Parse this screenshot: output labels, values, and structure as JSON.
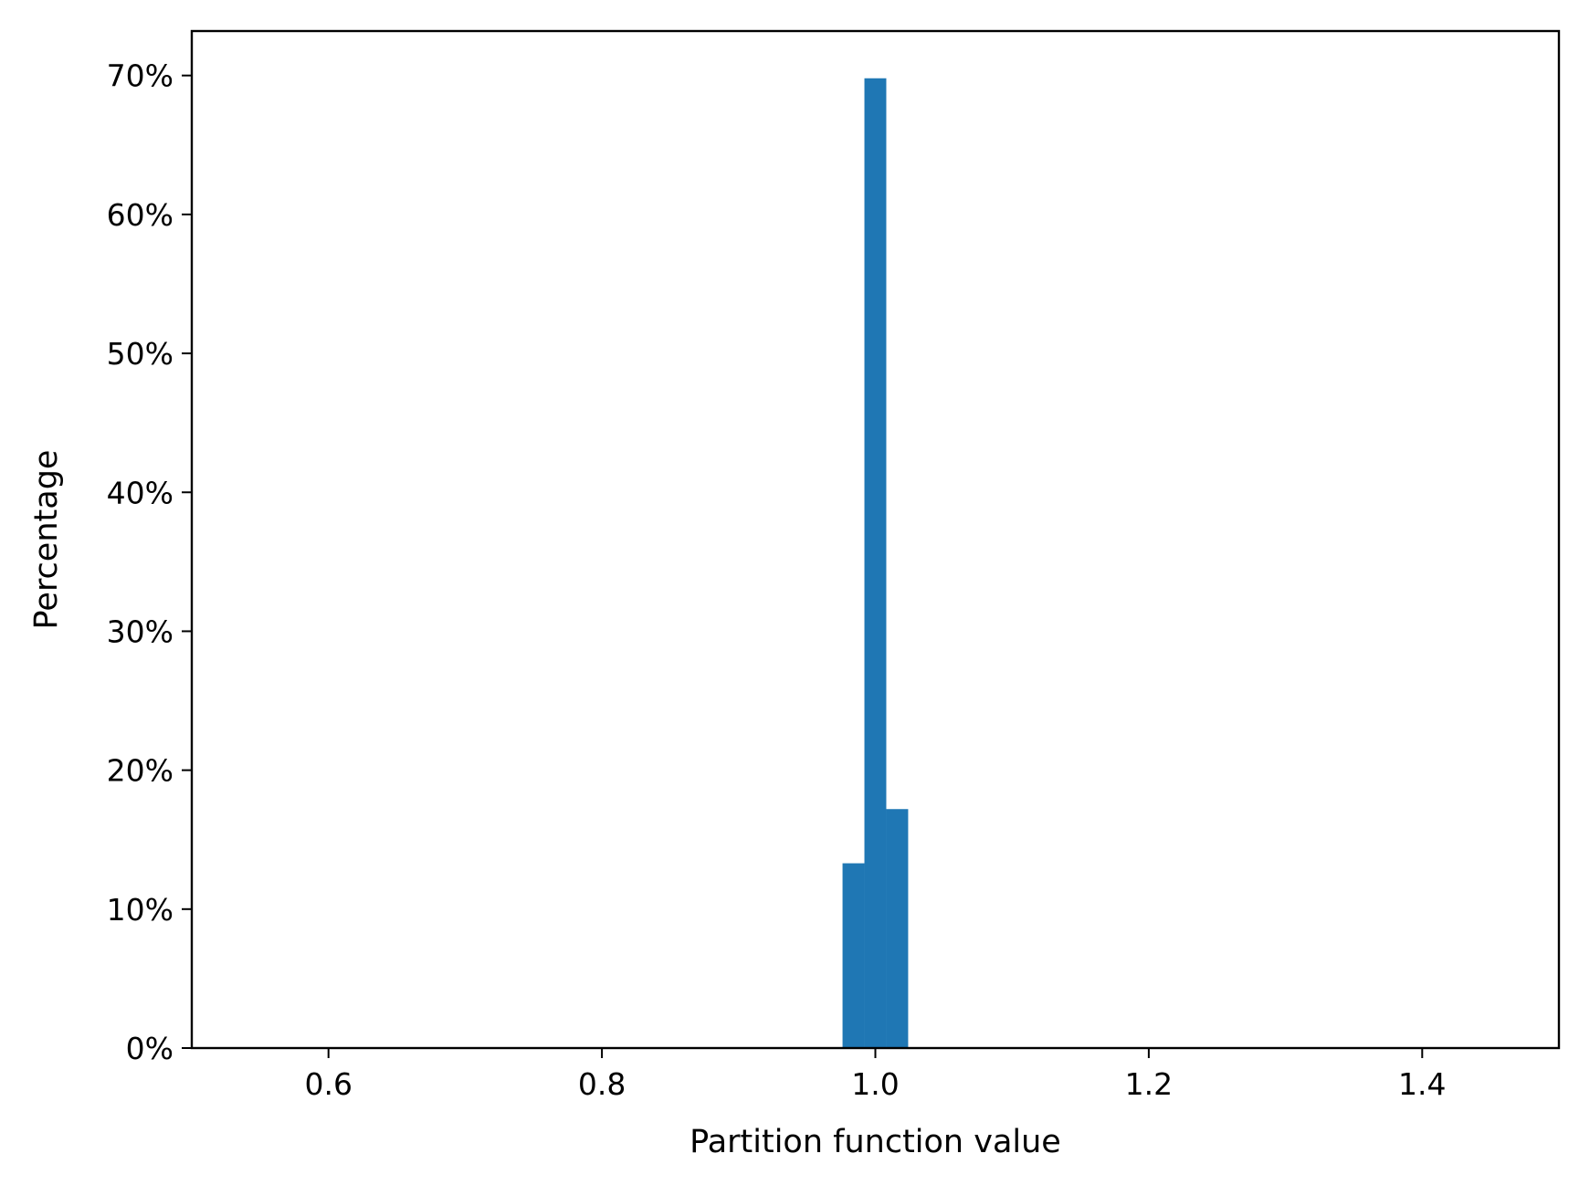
{
  "chart_data": {
    "type": "bar",
    "title": "",
    "xlabel": "Partition function value",
    "ylabel": "Percentage",
    "xlim": [
      0.5,
      1.5
    ],
    "ylim": [
      0,
      73.2
    ],
    "bin_width": 0.016,
    "bins": [
      {
        "x_start": 0.976,
        "x_end": 0.992,
        "value": 13.3
      },
      {
        "x_start": 0.992,
        "x_end": 1.008,
        "value": 69.8
      },
      {
        "x_start": 1.008,
        "x_end": 1.024,
        "value": 17.2
      }
    ],
    "x_ticks": [
      {
        "value": 0.6,
        "label": "0.6"
      },
      {
        "value": 0.8,
        "label": "0.8"
      },
      {
        "value": 1.0,
        "label": "1.0"
      },
      {
        "value": 1.2,
        "label": "1.2"
      },
      {
        "value": 1.4,
        "label": "1.4"
      }
    ],
    "y_ticks": [
      {
        "value": 0,
        "label": "0%"
      },
      {
        "value": 10,
        "label": "10%"
      },
      {
        "value": 20,
        "label": "20%"
      },
      {
        "value": 30,
        "label": "30%"
      },
      {
        "value": 40,
        "label": "40%"
      },
      {
        "value": 50,
        "label": "50%"
      },
      {
        "value": 60,
        "label": "60%"
      },
      {
        "value": 70,
        "label": "70%"
      }
    ],
    "grid": false,
    "legend": "none",
    "bar_color": "#1f77b4"
  }
}
